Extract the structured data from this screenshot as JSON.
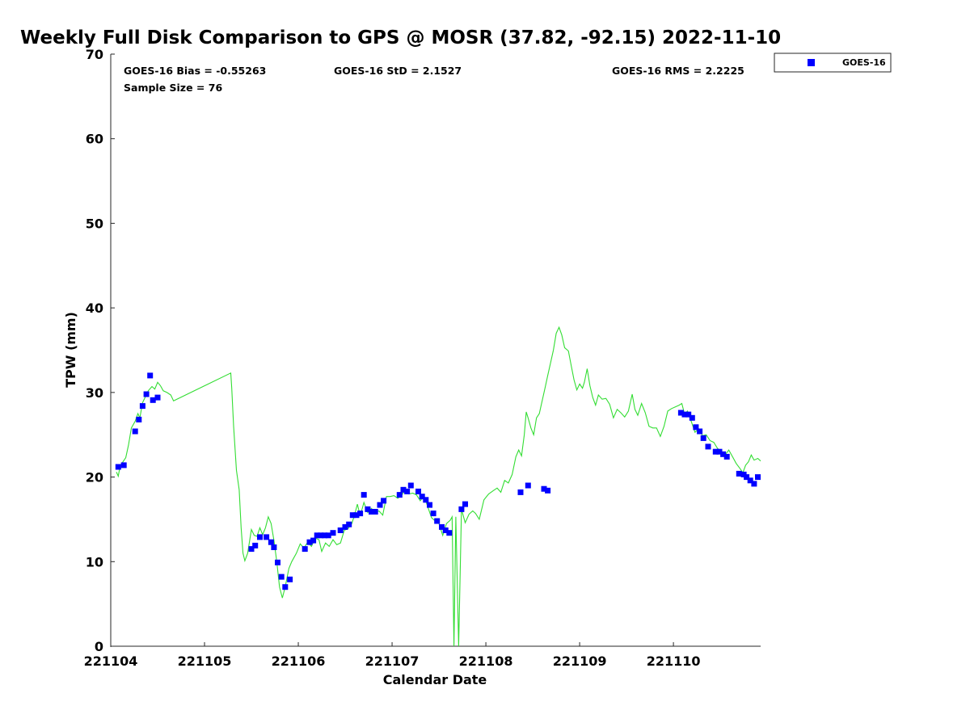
{
  "chart_data": {
    "type": "scatter",
    "title": "Weekly Full Disk Comparison to GPS @ MOSR (37.82, -92.15) 2022-11-10",
    "xlabel": "Calendar Date",
    "ylabel": "TPW (mm)",
    "xlim": [
      221104,
      221110.93
    ],
    "ylim": [
      0,
      70
    ],
    "x_ticks": [
      "221104",
      "221105",
      "221106",
      "221107",
      "221108",
      "221109",
      "221110"
    ],
    "y_ticks": [
      0,
      10,
      20,
      30,
      40,
      50,
      60,
      70
    ],
    "grid": false,
    "legend_position": "top-right, outside plot",
    "stats": {
      "bias": "GOES-16 Bias = -0.55263",
      "std": "GOES-16 StD = 2.1527",
      "rms": "GOES-16 RMS = 2.2225",
      "sample": "Sample Size = 76"
    },
    "series": [
      {
        "name": "GOES-16",
        "kind": "scatter",
        "color": "#0000ff",
        "x": [
          221104.08,
          221104.14,
          221104.26,
          221104.3,
          221104.34,
          221104.38,
          221104.42,
          221104.45,
          221104.5,
          221105.5,
          221105.54,
          221105.59,
          221105.66,
          221105.71,
          221105.74,
          221105.78,
          221105.82,
          221105.86,
          221105.91,
          221106.07,
          221106.12,
          221106.16,
          221106.2,
          221106.24,
          221106.28,
          221106.32,
          221106.37,
          221106.45,
          221106.5,
          221106.54,
          221106.58,
          221106.62,
          221106.66,
          221106.7,
          221106.74,
          221106.78,
          221106.82,
          221106.87,
          221106.91,
          221107.08,
          221107.12,
          221107.16,
          221107.2,
          221107.28,
          221107.32,
          221107.36,
          221107.4,
          221107.44,
          221107.48,
          221107.53,
          221107.57,
          221107.61,
          221107.74,
          221107.78,
          221108.37,
          221108.45,
          221108.62,
          221108.66,
          221110.08,
          221110.12,
          221110.16,
          221110.2,
          221110.24,
          221110.28,
          221110.32,
          221110.37,
          221110.45,
          221110.49,
          221110.53,
          221110.57,
          221110.7,
          221110.75,
          221110.78,
          221110.82,
          221110.86,
          221110.9
        ],
        "y": [
          21.2,
          21.4,
          25.4,
          26.8,
          28.4,
          29.8,
          32.0,
          29.1,
          29.4,
          11.5,
          11.9,
          12.9,
          12.9,
          12.3,
          11.7,
          9.9,
          8.2,
          7.0,
          7.9,
          11.5,
          12.3,
          12.5,
          13.1,
          13.1,
          13.1,
          13.1,
          13.4,
          13.7,
          14.1,
          14.4,
          15.5,
          15.5,
          15.7,
          17.9,
          16.2,
          15.9,
          15.9,
          16.7,
          17.2,
          17.9,
          18.5,
          18.3,
          19.0,
          18.3,
          17.7,
          17.3,
          16.7,
          15.7,
          14.8,
          14.1,
          13.7,
          13.4,
          16.2,
          16.8,
          18.2,
          19.0,
          18.6,
          18.4,
          27.6,
          27.4,
          27.4,
          27.0,
          25.9,
          25.4,
          24.6,
          23.6,
          23.0,
          23.0,
          22.7,
          22.4,
          20.4,
          20.3,
          20.0,
          19.6,
          19.2,
          20.0
        ]
      },
      {
        "kind": "line",
        "color": "#33dd33",
        "x": [
          221104.06,
          221104.08,
          221104.1,
          221104.13,
          221104.16,
          221104.19,
          221104.22,
          221104.26,
          221104.29,
          221104.31,
          221104.34,
          221104.37,
          221104.4,
          221104.44,
          221104.47,
          221104.5,
          221104.53,
          221104.56,
          221104.6,
          221104.64,
          221104.67,
          221105.28,
          221105.29,
          221105.31,
          221105.34,
          221105.37,
          221105.39,
          221105.41,
          221105.43,
          221105.46,
          221105.5,
          221105.53,
          221105.56,
          221105.59,
          221105.62,
          221105.65,
          221105.68,
          221105.71,
          221105.74,
          221105.77,
          221105.8,
          221105.83,
          221105.86,
          221105.9,
          221105.93,
          221105.98,
          221106.02,
          221106.06,
          221106.1,
          221106.14,
          221106.18,
          221106.22,
          221106.25,
          221106.29,
          221106.33,
          221106.37,
          221106.41,
          221106.45,
          221106.49,
          221106.53,
          221106.57,
          221106.6,
          221106.63,
          221106.66,
          221106.7,
          221106.74,
          221106.78,
          221106.82,
          221106.86,
          221106.9,
          221106.94,
          221106.98,
          221107.02,
          221107.06,
          221107.1,
          221107.14,
          221107.18,
          221107.22,
          221107.26,
          221107.3,
          221107.34,
          221107.38,
          221107.42,
          221107.46,
          221107.5,
          221107.54,
          221107.58,
          221107.62,
          221107.64,
          221107.66,
          221107.68,
          221107.71,
          221107.74,
          221107.78,
          221107.82,
          221107.86,
          221107.89,
          221107.93,
          221107.98,
          221108.03,
          221108.08,
          221108.12,
          221108.16,
          221108.2,
          221108.24,
          221108.28,
          221108.32,
          221108.35,
          221108.38,
          221108.41,
          221108.43,
          221108.45,
          221108.48,
          221108.51,
          221108.54,
          221108.57,
          221108.6,
          221108.63,
          221108.66,
          221108.69,
          221108.72,
          221108.75,
          221108.78,
          221108.81,
          221108.84,
          221108.88,
          221108.91,
          221108.94,
          221108.97,
          221109.0,
          221109.03,
          221109.05,
          221109.08,
          221109.11,
          221109.14,
          221109.17,
          221109.2,
          221109.24,
          221109.28,
          221109.32,
          221109.36,
          221109.4,
          221109.44,
          221109.48,
          221109.52,
          221109.56,
          221109.59,
          221109.62,
          221109.66,
          221109.7,
          221109.74,
          221109.78,
          221109.82,
          221109.86,
          221109.9,
          221109.94,
          221109.98,
          221110.02,
          221110.06,
          221110.09,
          221110.12,
          221110.15,
          221110.19,
          221110.23,
          221110.27,
          221110.31,
          221110.35,
          221110.39,
          221110.43,
          221110.47,
          221110.51,
          221110.55,
          221110.59,
          221110.63,
          221110.67,
          221110.71,
          221110.74,
          221110.77,
          221110.8,
          221110.83,
          221110.86,
          221110.9,
          221110.93
        ],
        "y": [
          20.6,
          20.1,
          21.3,
          21.8,
          22.3,
          23.8,
          25.8,
          26.6,
          27.5,
          27.0,
          28.8,
          29.5,
          30.2,
          30.7,
          30.4,
          31.2,
          30.8,
          30.2,
          30.0,
          29.7,
          29.0,
          32.3,
          30.5,
          26.0,
          20.8,
          18.5,
          14.0,
          11.0,
          10.1,
          11.0,
          13.8,
          13.1,
          13.0,
          14.0,
          13.2,
          14.0,
          15.3,
          14.5,
          12.5,
          10.0,
          7.0,
          5.7,
          7.0,
          9.2,
          10.0,
          11.0,
          12.1,
          11.6,
          12.3,
          11.8,
          12.8,
          12.6,
          11.2,
          12.2,
          11.8,
          12.6,
          12.0,
          12.2,
          13.7,
          13.9,
          14.5,
          15.5,
          16.8,
          15.4,
          17.0,
          15.8,
          16.3,
          15.8,
          16.0,
          15.5,
          17.7,
          17.7,
          17.8,
          17.5,
          17.8,
          18.5,
          18.0,
          18.1,
          17.9,
          17.2,
          17.8,
          16.5,
          15.2,
          14.8,
          14.5,
          13.1,
          14.5,
          14.9,
          15.3,
          0.0,
          15.3,
          0.0,
          16.2,
          14.6,
          15.6,
          16.0,
          15.7,
          15.0,
          17.3,
          18.0,
          18.4,
          18.7,
          18.2,
          19.6,
          19.3,
          20.3,
          22.4,
          23.2,
          22.5,
          25.0,
          27.7,
          27.0,
          25.8,
          25.0,
          27.0,
          27.5,
          29.0,
          30.5,
          32.0,
          33.5,
          35.0,
          37.0,
          37.7,
          36.8,
          35.3,
          34.9,
          33.2,
          31.5,
          30.3,
          31.0,
          30.5,
          31.2,
          32.8,
          30.8,
          29.4,
          28.5,
          29.7,
          29.2,
          29.3,
          28.6,
          27.0,
          28.0,
          27.6,
          27.1,
          27.8,
          29.8,
          28.0,
          27.3,
          28.7,
          27.6,
          26.0,
          25.8,
          25.8,
          24.8,
          26.0,
          27.8,
          28.1,
          28.3,
          28.5,
          28.7,
          27.4,
          27.8,
          26.6,
          25.3,
          25.7,
          24.9,
          25.0,
          24.3,
          24.1,
          23.4,
          23.0,
          22.6,
          23.2,
          22.4,
          21.6,
          21.0,
          20.5,
          21.4,
          21.8,
          22.6,
          22.0,
          22.2,
          21.9
        ]
      }
    ]
  }
}
